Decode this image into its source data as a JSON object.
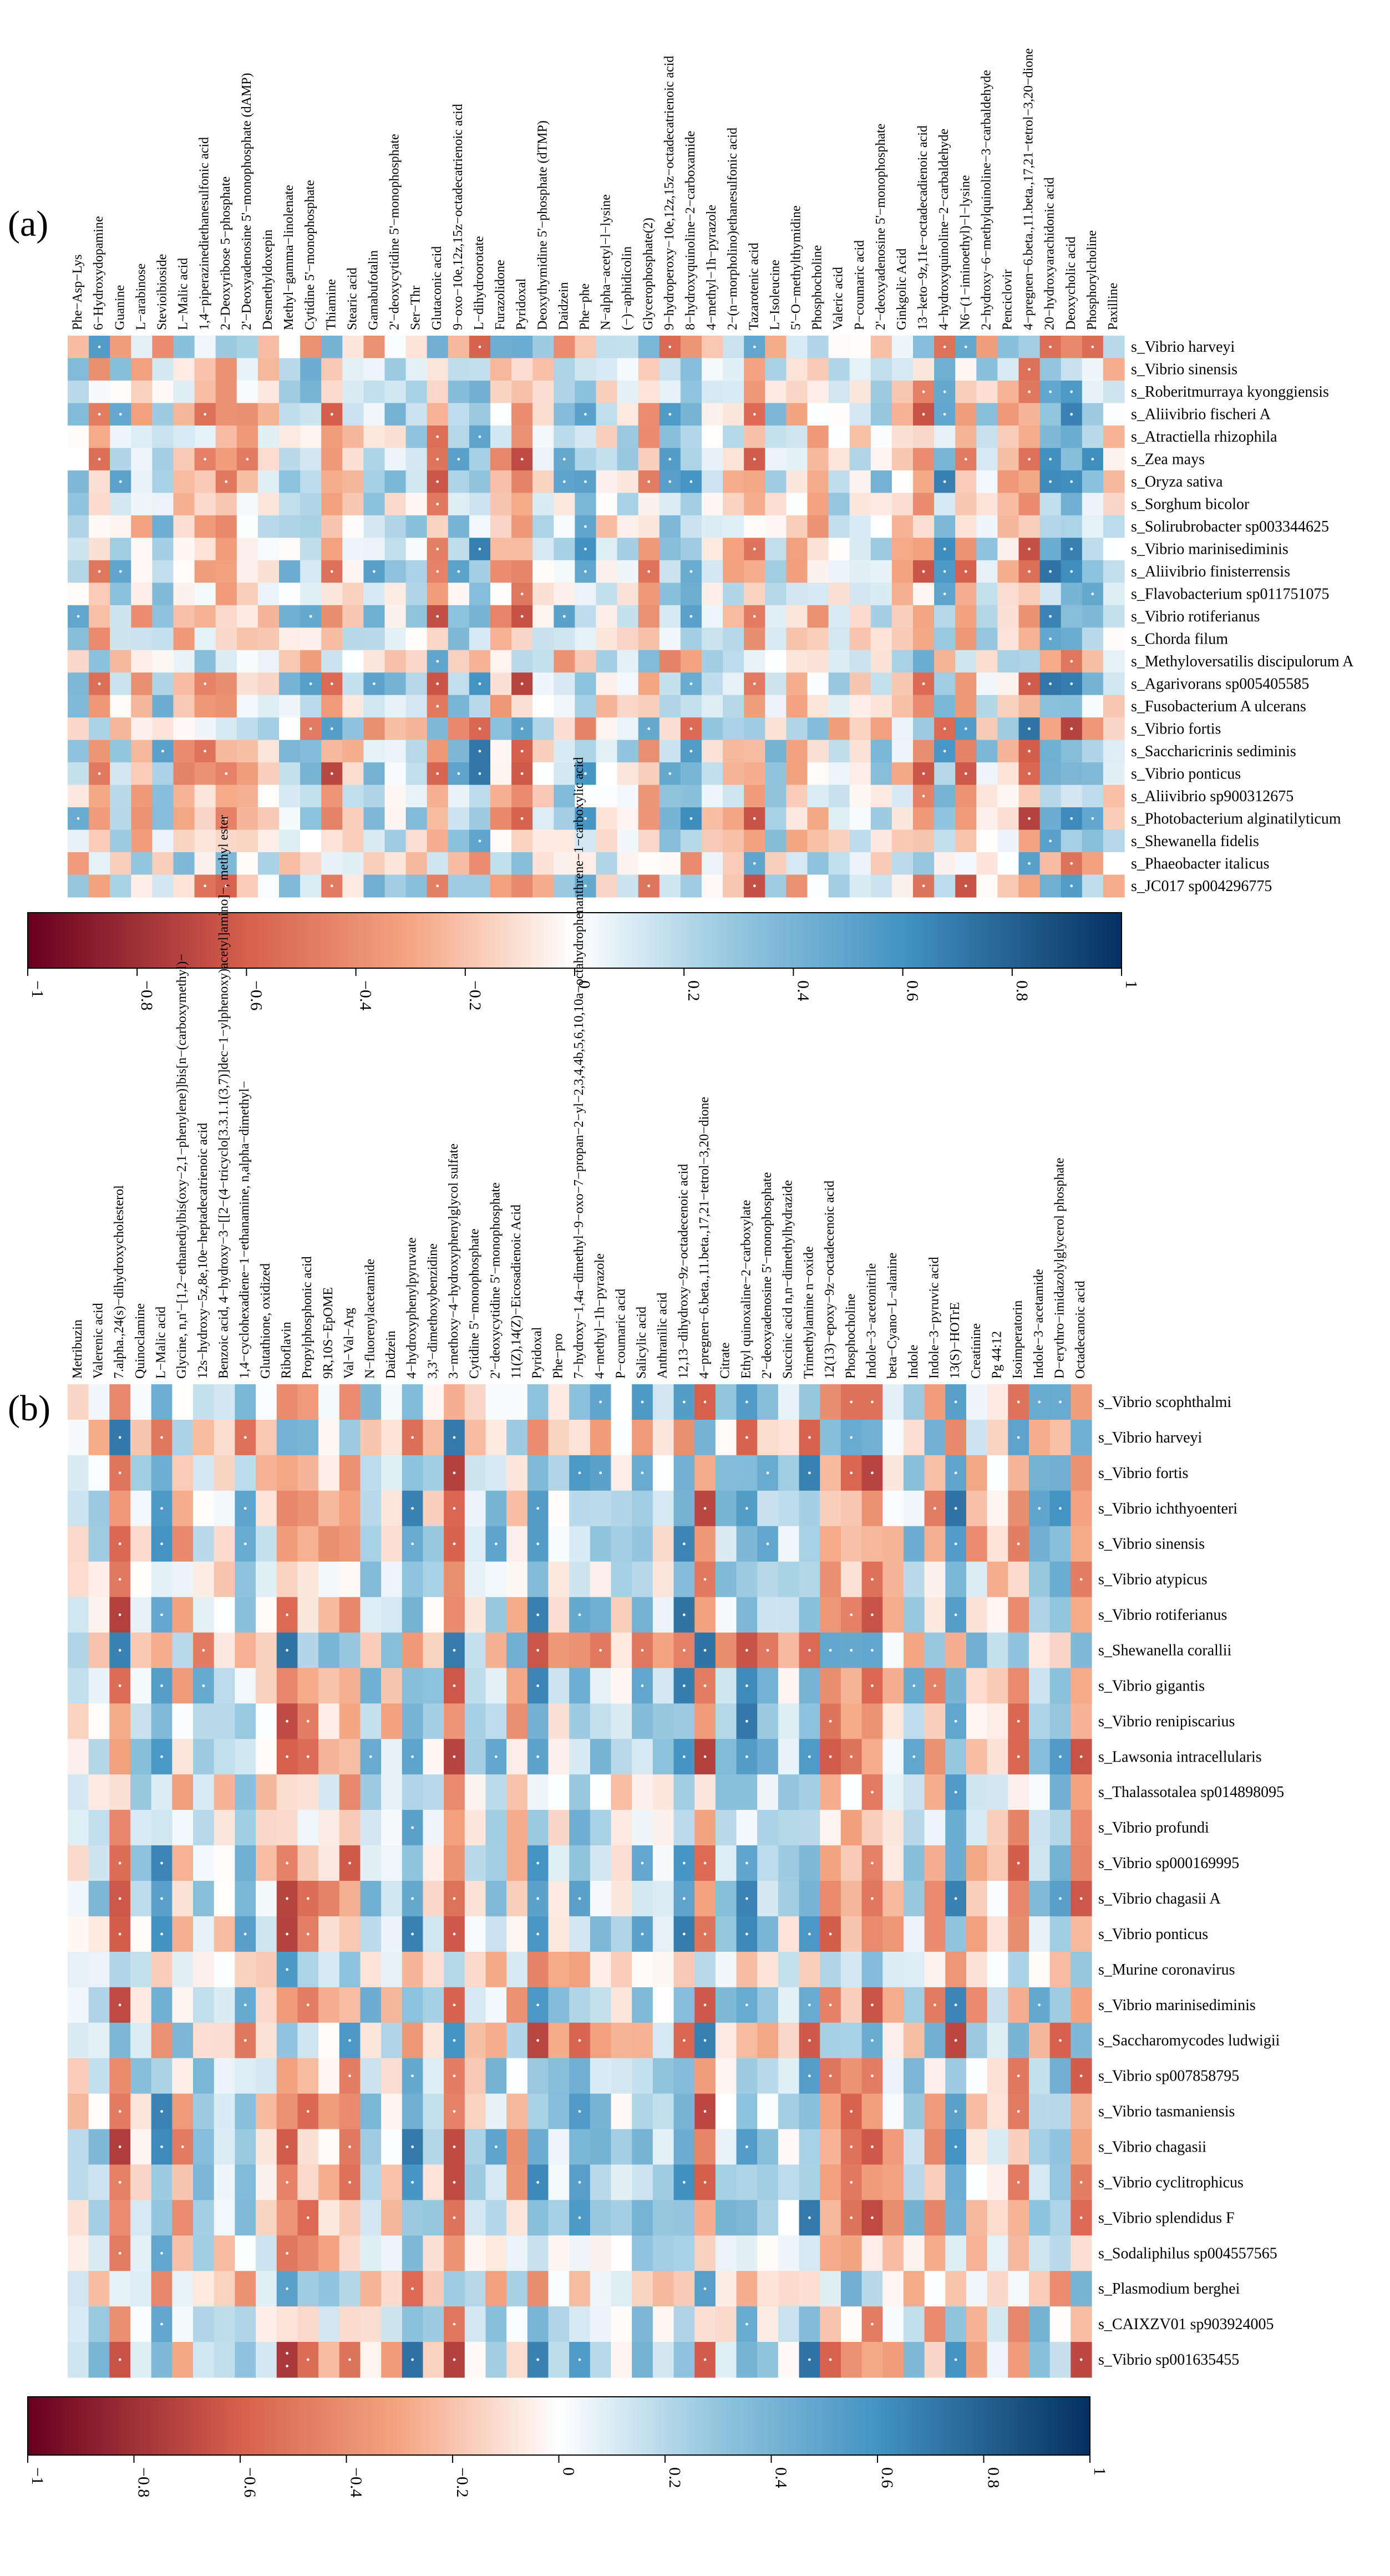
{
  "colors": {
    "neg": "#67001f",
    "mid_neg": "#d6604d",
    "light_neg": "#f4a582",
    "zero": "#ffffff",
    "light_pos": "#92c5de",
    "mid_pos": "#4393c3",
    "pos": "#053061"
  },
  "chart_data": [
    {
      "type": "heatmap",
      "panel_label": "(a)",
      "colorbar": {
        "min": -1,
        "max": 1,
        "ticks": [
          "−1",
          "−0.8",
          "−0.6",
          "−0.4",
          "−0.2",
          "0",
          "0.2",
          "0.4",
          "0.6",
          "0.8",
          "1"
        ]
      },
      "columns": [
        "Phe−Asp−Lys",
        "6−Hydroxydopamine",
        "Guanine",
        "L−arabinose",
        "Stevioibioside",
        "L−Malic acid",
        "1,4−piperazinediethanesulfonic acid",
        "2−Deoxyribose 5−phosphate",
        "2'−Deoxyadenosine 5'−monophosphate (dAMP)",
        "Desmethyldoxepin",
        "Methyl−gamma−linolenate",
        "Cytidine 5'−monophosphate",
        "Thiamine",
        "Stearic acid",
        "Gamabufotalin",
        "2'−deoxycytidine 5'−monophosphate",
        "Ser−Thr",
        "Glutaconic acid",
        "9−oxo−10e,12z,15z−octadecatrienoic acid",
        "L−dihydroorotate",
        "Furazolidone",
        "Pyridoxal",
        "Deoxythymidine 5'−phosphate (dTMP)",
        "Daidzein",
        "Phe−phe",
        "N−alpha−acetyl−l−lysine",
        "(−)−aphidicolin",
        "Glycerophosphate(2)",
        "9−hydroperoxy−10e,12z,15z−octadecatrienoic acid",
        "8−hydroxyquinoline−2−carboxamide",
        "4−methyl−1h−pyrazole",
        "2−(n−morpholino)ethanesulfonic acid",
        "Tazarotenic acid",
        "L−Isoleucine",
        "5'−O−methylthymidine",
        "Phosphocholine",
        "Valeric acid",
        "P−coumaric acid",
        "2'−deoxyadenosine 5'−monophosphate",
        "Ginkgolic Acid",
        "13−keto−9z,11e−octadecadienoic acid",
        "4−hydroxyquinoline−2−carbaldehyde",
        "N6−(1−iminoethyl)−l−lysine",
        "2−hydroxy−6−methylquinoline−3−carbaldehyde",
        "Penciclovir",
        "4−pregnen−6.beta.,11.beta.,17,21−tetrol−3,20−dione",
        "20−hydroxyarachidonic acid",
        "Deoxycholic acid",
        "Phosphorylcholine",
        "Paxilline"
      ],
      "rows": [
        "s_Vibrio harveyi",
        "s_Vibrio sinensis",
        "s_Roberitmurraya kyonggiensis",
        "s_Aliivibrio fischeri A",
        "s_Atractiella rhizophila",
        "s_Zea mays",
        "s_Oryza sativa",
        "s_Sorghum bicolor",
        "s_Solirubrobacter sp003344625",
        "s_Vibrio marinisediminis",
        "s_Aliivibrio finisterrensis",
        "s_Flavobacterium sp011751075",
        "s_Vibrio rotiferianus",
        "s_Chorda filum",
        "s_Methyloversatilis discipulorum A",
        "s_Agarivorans sp005405585",
        "s_Fusobacterium A ulcerans",
        "s_Vibrio fortis",
        "s_Saccharicrinis sediminis",
        "s_Vibrio ponticus",
        "s_Aliivibrio sp900312675",
        "s_Photobacterium alginatilyticum",
        "s_Shewanella fidelis",
        "s_Phaeobacter italicus",
        "s_JC017 sp004296775"
      ],
      "special_rows": [
        "s_Vibrio harveyi",
        "s_Methyloversatilis discipulorum A",
        "s_Vibrio fortis",
        "s_Phaeobacter italicus"
      ]
    },
    {
      "type": "heatmap",
      "panel_label": "(b)",
      "colorbar": {
        "min": -1,
        "max": 1,
        "ticks": [
          "−1",
          "−0.8",
          "−0.6",
          "−0.4",
          "−0.2",
          "0",
          "0.2",
          "0.4",
          "0.6",
          "0.8",
          "1"
        ]
      },
      "columns": [
        "Metribuzin",
        "Valerenic acid",
        "7.alpha.,24(s)−dihydroxycholesterol",
        "Quinoclamine",
        "L−Malic acid",
        "Glycine, n,n'−[1,2−ethanediylbis(oxy−2,1−phenylene)]bis[n−(carboxymethyl)−",
        "12s−hydroxy−5z,8e,10e−heptadecatrienoic acid",
        "Benzoic acid, 4−hydroxy−3−[[2−(4−tricyclo[3.3.1.1(3,7)]dec−1−ylphenoxy)acetyl]amino]−, methyl ester",
        "1,4−cyclohexadiene−1−ethanamine, n,alpha−dimethyl−",
        "Glutathione, oxidized",
        "Riboflavin",
        "Propylphosphonic acid",
        "9R,10S−EpOME",
        "Val−Val−Arg",
        "N−fluorenylacetamide",
        "Daidzein",
        "4−hydroxyphenylpyruvate",
        "3,3'−dimethoxybenzidine",
        "3−methoxy−4−hydroxyphenylglycol sulfate",
        "Cytidine 5'−monophosphate",
        "2'−deoxycytidine 5'−monophosphate",
        "11(Z),14(Z)−Eicosadienoic Acid",
        "Pyridoxal",
        "Phe−pro",
        "7−hydroxy−1,4a−dimethyl−9−oxo−7−propan−2−yl−2,3,4,4b,5,6,10,10a−octahydrophenanthrene−1−carboxylic acid",
        "4−methyl−1h−pyrazole",
        "P−coumaric acid",
        "Salicylic acid",
        "Anthranilic acid",
        "12,13−dihydroxy−9z−octadecenoic acid",
        "4−pregnen−6.beta.,11.beta.,17,21−tetrol−3,20−dione",
        "Citrate",
        "Ethyl quinoxaline−2−carboxylate",
        "2'−deoxyadenosine 5'−monophosphate",
        "Succinic acid n,n−dimethylhydrazide",
        "Trimethylamine n−oxide",
        "12(13)−epoxy−9z−octadecenoic acid",
        "Phosphocholine",
        "Indole−3−acetonitrile",
        "beta−Cyano−L−alanine",
        "Indole",
        "Indole−3−pyruvic acid",
        "13(S)−HOTrE",
        "Creatinine",
        "Pg 44:12",
        "Isoimperatorin",
        "Indole−3−acetamide",
        "D−erythro−imidazolylglycerol phosphate",
        "Octadecanoic acid"
      ],
      "rows": [
        "s_Vibrio scophthalmi",
        "s_Vibrio harveyi",
        "s_Vibrio fortis",
        "s_Vibrio ichthyoenteri",
        "s_Vibrio sinensis",
        "s_Vibrio atypicus",
        "s_Vibrio rotiferianus",
        "s_Shewanella corallii",
        "s_Vibrio gigantis",
        "s_Vibrio renipiscarius",
        "s_Lawsonia intracellularis",
        "s_Thalassotalea sp014898095",
        "s_Vibrio profundi",
        "s_Vibrio sp000169995",
        "s_Vibrio chagasii A",
        "s_Vibrio ponticus",
        "s_Murine coronavirus",
        "s_Vibrio marinisediminis",
        "s_Saccharomycodes ludwigii",
        "s_Vibrio sp007858795",
        "s_Vibrio tasmaniensis",
        "s_Vibrio chagasii",
        "s_Vibrio cyclitrophicus",
        "s_Vibrio splendidus F",
        "s_Sodaliphilus sp004557565",
        "s_Plasmodium berghei",
        "s_CAIXZV01 sp903924005",
        "s_Vibrio sp001635455"
      ],
      "special_rows": [
        "s_Vibrio harveyi",
        "s_Shewanella corallii",
        "s_Murine coronavirus",
        "s_Saccharomycodes ludwigii",
        "s_Plasmodium berghei"
      ]
    }
  ]
}
